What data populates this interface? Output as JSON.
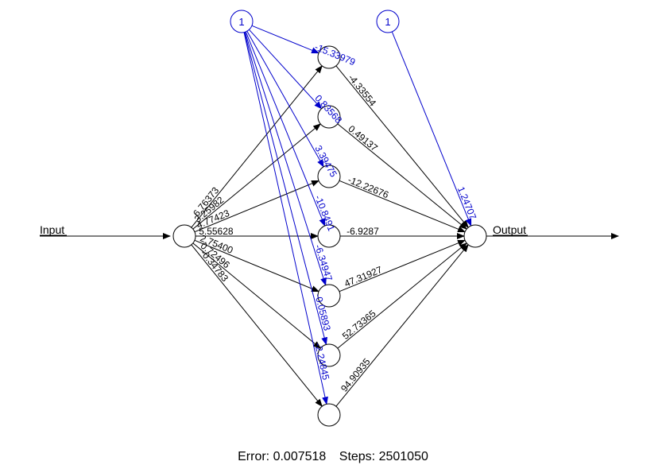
{
  "labels": {
    "input": "Input",
    "output": "Output"
  },
  "bias_text": "1",
  "input_weights": [
    "6.76373",
    "3.25982",
    "4.77423",
    "5.55628",
    "2.75400",
    "0.72496",
    "-0.34783"
  ],
  "hidden_bias_weights": [
    "-15.33979",
    "0.83568",
    "3.39475",
    "-10.8491",
    "-6.34947",
    "-0.05893",
    "-2.24845"
  ],
  "hidden_output_weights": [
    "-4.33554",
    "0.49137",
    "-12.22676",
    "-6.9287",
    "47.31927",
    "52.73365",
    "94.90935"
  ],
  "output_bias_weight": "1.24707",
  "footer": {
    "error": "Error: 0.007518",
    "steps": "Steps: 2501050"
  },
  "colors": {
    "weights": "#000000",
    "bias": "#0000cc"
  }
}
